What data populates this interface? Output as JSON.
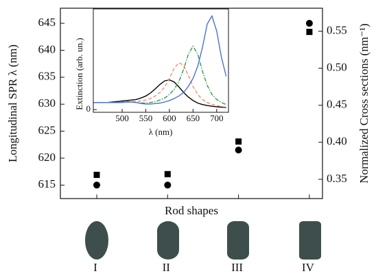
{
  "chart_data": [
    {
      "type": "scatter",
      "categories": [
        "I",
        "II",
        "III",
        "IV"
      ],
      "x_label": "Rod shapes",
      "y_label": "Longitudinal SPR   λ (nm)",
      "y2_label": "Normalized Cross sections (nm⁻¹)",
      "ylim": [
        612.5,
        647.8
      ],
      "yticks": [
        615,
        620,
        625,
        630,
        635,
        640,
        645
      ],
      "y2lim": [
        0.324,
        0.581
      ],
      "y2ticks": [
        0.35,
        {
          "value": 0.4,
          "label": "0.40"
        },
        0.45,
        {
          "value": 0.5,
          "label": "0.50"
        },
        0.55
      ],
      "series": [
        {
          "marker": "circle",
          "color": "#000000",
          "axis": "y",
          "values": [
            615,
            615,
            621.5,
            645
          ]
        },
        {
          "marker": "square",
          "color": "#000000",
          "axis": "y2",
          "values": [
            0.356,
            0.357,
            0.401,
            0.549
          ]
        }
      ]
    },
    {
      "type": "line",
      "x_label": "λ (nm)",
      "y_label": "Extinction (arb. un.)",
      "xlim": [
        439,
        725
      ],
      "xticks": [
        500,
        550,
        600,
        650,
        700
      ],
      "ylim": [
        -0.027,
        1
      ],
      "yticks": [
        0
      ],
      "x": [
        440,
        450,
        460,
        470,
        480,
        490,
        500,
        510,
        520,
        530,
        540,
        550,
        560,
        570,
        580,
        590,
        600,
        610,
        620,
        630,
        640,
        650,
        660,
        670,
        680,
        690,
        700,
        710,
        720
      ],
      "series": [
        {
          "color": "#000000",
          "dash": "none",
          "values": [
            0.07,
            0.07,
            0.07,
            0.07,
            0.075,
            0.08,
            0.085,
            0.09,
            0.095,
            0.1,
            0.115,
            0.135,
            0.165,
            0.205,
            0.25,
            0.285,
            0.295,
            0.275,
            0.225,
            0.17,
            0.125,
            0.09,
            0.065,
            0.05,
            0.04,
            0.033,
            0.028,
            0.024,
            0.02
          ]
        },
        {
          "color": "#f28a6a",
          "dash": "5 3",
          "values": [
            0.07,
            0.07,
            0.07,
            0.07,
            0.07,
            0.07,
            0.075,
            0.08,
            0.08,
            0.08,
            0.085,
            0.095,
            0.11,
            0.135,
            0.17,
            0.225,
            0.31,
            0.41,
            0.465,
            0.44,
            0.34,
            0.23,
            0.15,
            0.1,
            0.07,
            0.05,
            0.04,
            0.03,
            0.025
          ]
        },
        {
          "color": "#2e9e4f",
          "dash": "6 2 1.5 2",
          "values": [
            0.07,
            0.07,
            0.07,
            0.07,
            0.07,
            0.07,
            0.07,
            0.075,
            0.075,
            0.07,
            0.065,
            0.065,
            0.07,
            0.08,
            0.095,
            0.115,
            0.15,
            0.2,
            0.28,
            0.4,
            0.55,
            0.63,
            0.55,
            0.38,
            0.24,
            0.15,
            0.1,
            0.07,
            0.05
          ]
        },
        {
          "color": "#4a6fd8",
          "dash": "none",
          "values": [
            0.07,
            0.07,
            0.07,
            0.07,
            0.07,
            0.07,
            0.07,
            0.075,
            0.075,
            0.07,
            0.06,
            0.055,
            0.055,
            0.06,
            0.065,
            0.075,
            0.09,
            0.11,
            0.135,
            0.17,
            0.23,
            0.31,
            0.43,
            0.62,
            0.85,
            0.93,
            0.78,
            0.52,
            0.33
          ]
        }
      ]
    }
  ]
}
